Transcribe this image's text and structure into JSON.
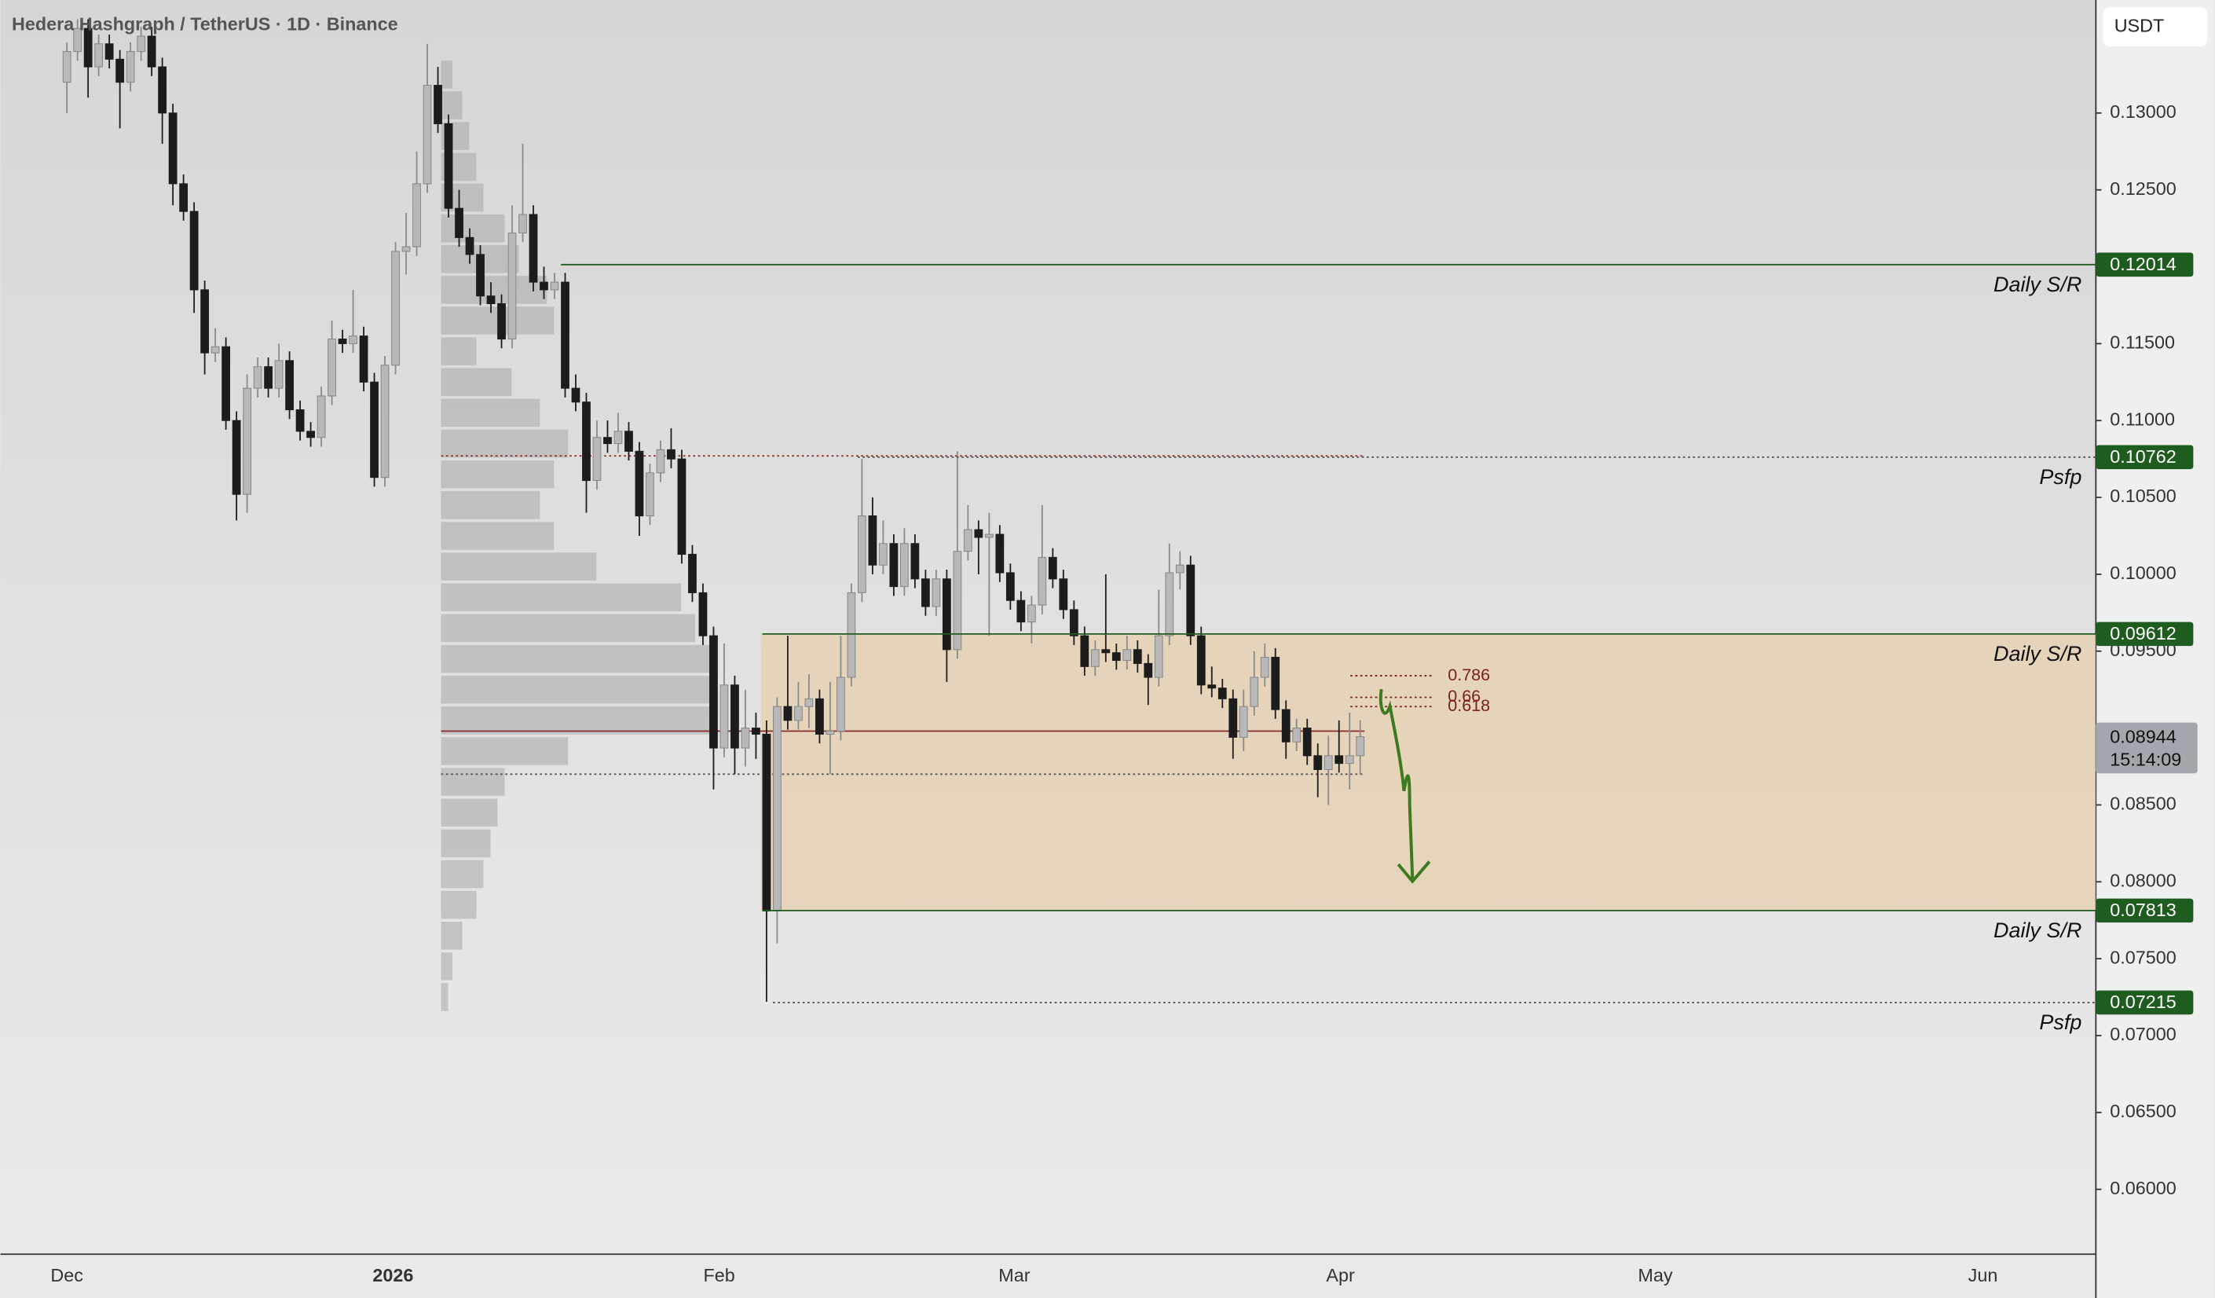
{
  "chart_data": {
    "type": "candlestick",
    "title": "Hedera Hashgraph / TetherUS · 1D · Binance",
    "currency": "USDT",
    "countdown": "15:14:09",
    "bull_color": "#b8b8b8",
    "bear_color": "#1c1c1c",
    "ylim": [
      0.05578,
      0.13735
    ],
    "yticks": [
      {
        "value": 0.06,
        "label": "0.06000"
      },
      {
        "value": 0.065,
        "label": "0.06500"
      },
      {
        "value": 0.07,
        "label": "0.07000"
      },
      {
        "value": 0.075,
        "label": "0.07500"
      },
      {
        "value": 0.08,
        "label": "0.08000"
      },
      {
        "value": 0.085,
        "label": "0.08500"
      },
      {
        "value": 0.095,
        "label": "0.09500"
      },
      {
        "value": 0.1,
        "label": "0.10000"
      },
      {
        "value": 0.105,
        "label": "0.10500"
      },
      {
        "value": 0.11,
        "label": "0.11000"
      },
      {
        "value": 0.115,
        "label": "0.11500"
      },
      {
        "value": 0.125,
        "label": "0.12500"
      },
      {
        "value": 0.13,
        "label": "0.13000"
      }
    ],
    "xtick_labels": [
      "Dec",
      "2026",
      "Feb",
      "Mar",
      "Apr",
      "May",
      "Jun"
    ],
    "ohlc": [
      [
        0.132,
        0.1346,
        0.13,
        0.134
      ],
      [
        0.134,
        0.1361,
        0.1334,
        0.1355
      ],
      [
        0.1355,
        0.1361,
        0.131,
        0.133
      ],
      [
        0.133,
        0.1351,
        0.1324,
        0.1345
      ],
      [
        0.1345,
        0.1351,
        0.1329,
        0.1335
      ],
      [
        0.1335,
        0.1341,
        0.129,
        0.132
      ],
      [
        0.132,
        0.1346,
        0.1314,
        0.134
      ],
      [
        0.134,
        0.1356,
        0.1334,
        0.135
      ],
      [
        0.135,
        0.1356,
        0.1324,
        0.133
      ],
      [
        0.133,
        0.1336,
        0.128,
        0.13
      ],
      [
        0.13,
        0.1306,
        0.124,
        0.1254
      ],
      [
        0.1254,
        0.126,
        0.123,
        0.1236
      ],
      [
        0.1236,
        0.1242,
        0.117,
        0.1185
      ],
      [
        0.1185,
        0.1191,
        0.113,
        0.1144
      ],
      [
        0.1144,
        0.116,
        0.1138,
        0.1148
      ],
      [
        0.1148,
        0.1154,
        0.1094,
        0.11
      ],
      [
        0.11,
        0.1106,
        0.1035,
        0.1052
      ],
      [
        0.1052,
        0.113,
        0.104,
        0.1121
      ],
      [
        0.1121,
        0.1141,
        0.1115,
        0.1135
      ],
      [
        0.1135,
        0.1141,
        0.1115,
        0.1121
      ],
      [
        0.1121,
        0.115,
        0.1115,
        0.1139
      ],
      [
        0.1139,
        0.1145,
        0.1101,
        0.1107
      ],
      [
        0.1107,
        0.1113,
        0.1087,
        0.1093
      ],
      [
        0.1093,
        0.1099,
        0.1083,
        0.1089
      ],
      [
        0.1089,
        0.1122,
        0.1083,
        0.1116
      ],
      [
        0.1116,
        0.1165,
        0.111,
        0.1153
      ],
      [
        0.1153,
        0.1159,
        0.1144,
        0.115
      ],
      [
        0.115,
        0.1185,
        0.1144,
        0.1155
      ],
      [
        0.1155,
        0.1161,
        0.1119,
        0.1125
      ],
      [
        0.1125,
        0.1131,
        0.1057,
        0.1063
      ],
      [
        0.1063,
        0.1142,
        0.1057,
        0.1136
      ],
      [
        0.1136,
        0.1216,
        0.113,
        0.121
      ],
      [
        0.121,
        0.1235,
        0.1195,
        0.1213
      ],
      [
        0.1213,
        0.1275,
        0.1207,
        0.1254
      ],
      [
        0.1254,
        0.1345,
        0.1248,
        0.1318
      ],
      [
        0.1318,
        0.133,
        0.1287,
        0.1293
      ],
      [
        0.1293,
        0.1299,
        0.1232,
        0.1238
      ],
      [
        0.1238,
        0.125,
        0.1213,
        0.1219
      ],
      [
        0.1219,
        0.1225,
        0.1202,
        0.1208
      ],
      [
        0.1208,
        0.1214,
        0.1175,
        0.1181
      ],
      [
        0.1181,
        0.119,
        0.117,
        0.1176
      ],
      [
        0.1176,
        0.1182,
        0.1147,
        0.1153
      ],
      [
        0.1153,
        0.124,
        0.1147,
        0.1222
      ],
      [
        0.1222,
        0.128,
        0.1216,
        0.1234
      ],
      [
        0.1234,
        0.124,
        0.1184,
        0.119
      ],
      [
        0.119,
        0.12,
        0.1179,
        0.1185
      ],
      [
        0.1185,
        0.1196,
        0.1179,
        0.119
      ],
      [
        0.119,
        0.1196,
        0.1115,
        0.1121
      ],
      [
        0.1121,
        0.113,
        0.1106,
        0.1112
      ],
      [
        0.1112,
        0.1118,
        0.104,
        0.1061
      ],
      [
        0.1061,
        0.11,
        0.1055,
        0.1089
      ],
      [
        0.1089,
        0.11,
        0.1079,
        0.1085
      ],
      [
        0.1085,
        0.1105,
        0.1079,
        0.1093
      ],
      [
        0.1093,
        0.1099,
        0.1074,
        0.108
      ],
      [
        0.108,
        0.1086,
        0.1025,
        0.1038
      ],
      [
        0.1038,
        0.1072,
        0.1032,
        0.1066
      ],
      [
        0.1066,
        0.1087,
        0.106,
        0.1081
      ],
      [
        0.1081,
        0.1095,
        0.1069,
        0.1075
      ],
      [
        0.1075,
        0.1081,
        0.1007,
        0.1013
      ],
      [
        0.1013,
        0.1019,
        0.0982,
        0.0988
      ],
      [
        0.0988,
        0.0994,
        0.0954,
        0.096
      ],
      [
        0.096,
        0.0966,
        0.086,
        0.0887
      ],
      [
        0.0887,
        0.0955,
        0.0881,
        0.0928
      ],
      [
        0.0928,
        0.0934,
        0.087,
        0.0887
      ],
      [
        0.0887,
        0.0925,
        0.0875,
        0.09
      ],
      [
        0.09,
        0.091,
        0.088,
        0.0896
      ],
      [
        0.0896,
        0.0905,
        0.0722,
        0.0781
      ],
      [
        0.0781,
        0.092,
        0.076,
        0.0914
      ],
      [
        0.0914,
        0.096,
        0.0899,
        0.0905
      ],
      [
        0.0905,
        0.093,
        0.0899,
        0.0914
      ],
      [
        0.0914,
        0.0935,
        0.09,
        0.0919
      ],
      [
        0.0919,
        0.0925,
        0.089,
        0.0896
      ],
      [
        0.0896,
        0.093,
        0.087,
        0.0898
      ],
      [
        0.0898,
        0.096,
        0.0892,
        0.0933
      ],
      [
        0.0933,
        0.0994,
        0.0927,
        0.0988
      ],
      [
        0.0988,
        0.1075,
        0.0982,
        0.1038
      ],
      [
        0.1038,
        0.105,
        0.1,
        0.1006
      ],
      [
        0.1006,
        0.1035,
        0.1,
        0.102
      ],
      [
        0.102,
        0.1026,
        0.0986,
        0.0992
      ],
      [
        0.0992,
        0.103,
        0.0986,
        0.102
      ],
      [
        0.102,
        0.1026,
        0.0991,
        0.0997
      ],
      [
        0.0997,
        0.1003,
        0.0973,
        0.0979
      ],
      [
        0.0979,
        0.1003,
        0.0973,
        0.0997
      ],
      [
        0.0997,
        0.1003,
        0.093,
        0.0951
      ],
      [
        0.0951,
        0.108,
        0.0945,
        0.1015
      ],
      [
        0.1015,
        0.1045,
        0.1009,
        0.1029
      ],
      [
        0.1029,
        0.1035,
        0.1,
        0.1024
      ],
      [
        0.1024,
        0.104,
        0.096,
        0.1026
      ],
      [
        0.1026,
        0.1032,
        0.0995,
        0.1001
      ],
      [
        0.1001,
        0.1007,
        0.0977,
        0.0983
      ],
      [
        0.0983,
        0.0989,
        0.0963,
        0.0969
      ],
      [
        0.0969,
        0.0986,
        0.0955,
        0.098
      ],
      [
        0.098,
        0.1045,
        0.0974,
        0.1011
      ],
      [
        0.1011,
        0.1017,
        0.0991,
        0.0997
      ],
      [
        0.0997,
        0.1003,
        0.0971,
        0.0977
      ],
      [
        0.0977,
        0.0983,
        0.0954,
        0.096
      ],
      [
        0.096,
        0.0966,
        0.0934,
        0.094
      ],
      [
        0.094,
        0.0957,
        0.0934,
        0.0951
      ],
      [
        0.0951,
        0.1,
        0.0943,
        0.0949
      ],
      [
        0.0949,
        0.0955,
        0.0938,
        0.0944
      ],
      [
        0.0944,
        0.096,
        0.0938,
        0.0951
      ],
      [
        0.0951,
        0.0957,
        0.0936,
        0.0942
      ],
      [
        0.0942,
        0.0948,
        0.0915,
        0.0933
      ],
      [
        0.0933,
        0.099,
        0.0927,
        0.096
      ],
      [
        0.096,
        0.102,
        0.0954,
        0.1001
      ],
      [
        0.1001,
        0.1015,
        0.099,
        0.1006
      ],
      [
        0.1006,
        0.1012,
        0.0954,
        0.096
      ],
      [
        0.096,
        0.0966,
        0.0922,
        0.0928
      ],
      [
        0.0928,
        0.094,
        0.092,
        0.0926
      ],
      [
        0.0926,
        0.0932,
        0.0913,
        0.0919
      ],
      [
        0.0919,
        0.0925,
        0.088,
        0.0894
      ],
      [
        0.0894,
        0.0925,
        0.0885,
        0.0914
      ],
      [
        0.0914,
        0.095,
        0.0908,
        0.0933
      ],
      [
        0.0933,
        0.0955,
        0.0927,
        0.0946
      ],
      [
        0.0946,
        0.0952,
        0.0906,
        0.0912
      ],
      [
        0.0912,
        0.0918,
        0.088,
        0.0891
      ],
      [
        0.0891,
        0.0906,
        0.0885,
        0.09
      ],
      [
        0.09,
        0.0906,
        0.0876,
        0.0882
      ],
      [
        0.0882,
        0.089,
        0.0855,
        0.0873
      ],
      [
        0.0873,
        0.0895,
        0.085,
        0.0882
      ],
      [
        0.0882,
        0.0905,
        0.0871,
        0.0877
      ],
      [
        0.0877,
        0.091,
        0.086,
        0.0882
      ],
      [
        0.0882,
        0.0905,
        0.087,
        0.08944
      ]
    ],
    "levels": [
      {
        "price": 0.12014,
        "label": "Daily S/R",
        "style": "solid"
      },
      {
        "price": 0.10762,
        "label": "Psfp",
        "style": "dotted"
      },
      {
        "price": 0.09612,
        "label": "Daily S/R",
        "style": "solid"
      },
      {
        "price": 0.07813,
        "label": "Daily S/R",
        "style": "solid"
      },
      {
        "price": 0.07215,
        "label": "Psfp",
        "style": "dotted"
      }
    ],
    "level_color": "#1f5c1f",
    "zone_color": "#e8c9a0",
    "profile_lines": [
      {
        "price": 0.1077,
        "style": "dotted",
        "color": "#8b2a2a"
      },
      {
        "price": 0.0898,
        "style": "solid",
        "color": "#8b2a2a"
      },
      {
        "price": 0.087,
        "style": "dotted",
        "color": "#555555"
      }
    ],
    "fib": [
      {
        "ratio": 0.786,
        "price": 0.0934
      },
      {
        "ratio": 0.66,
        "price": 0.092
      },
      {
        "ratio": 0.618,
        "price": 0.0914
      }
    ],
    "fib_color": "#7a2020",
    "volume_profile": {
      "prices": [
        0.0725,
        0.0745,
        0.0765,
        0.0785,
        0.0805,
        0.0825,
        0.0845,
        0.0865,
        0.0885,
        0.0905,
        0.0925,
        0.0945,
        0.0965,
        0.0985,
        0.1005,
        0.1025,
        0.1045,
        0.1065,
        0.1085,
        0.1105,
        0.1125,
        0.1145,
        0.1165,
        0.1185,
        0.1205,
        0.1225,
        0.1245,
        0.1265,
        0.1285,
        0.1305,
        0.1325
      ],
      "volumes": [
        5,
        8,
        15,
        25,
        30,
        35,
        40,
        45,
        90,
        190,
        190,
        190,
        180,
        170,
        110,
        80,
        70,
        80,
        90,
        70,
        50,
        25,
        80,
        75,
        55,
        45,
        30,
        25,
        20,
        15,
        8
      ]
    }
  }
}
